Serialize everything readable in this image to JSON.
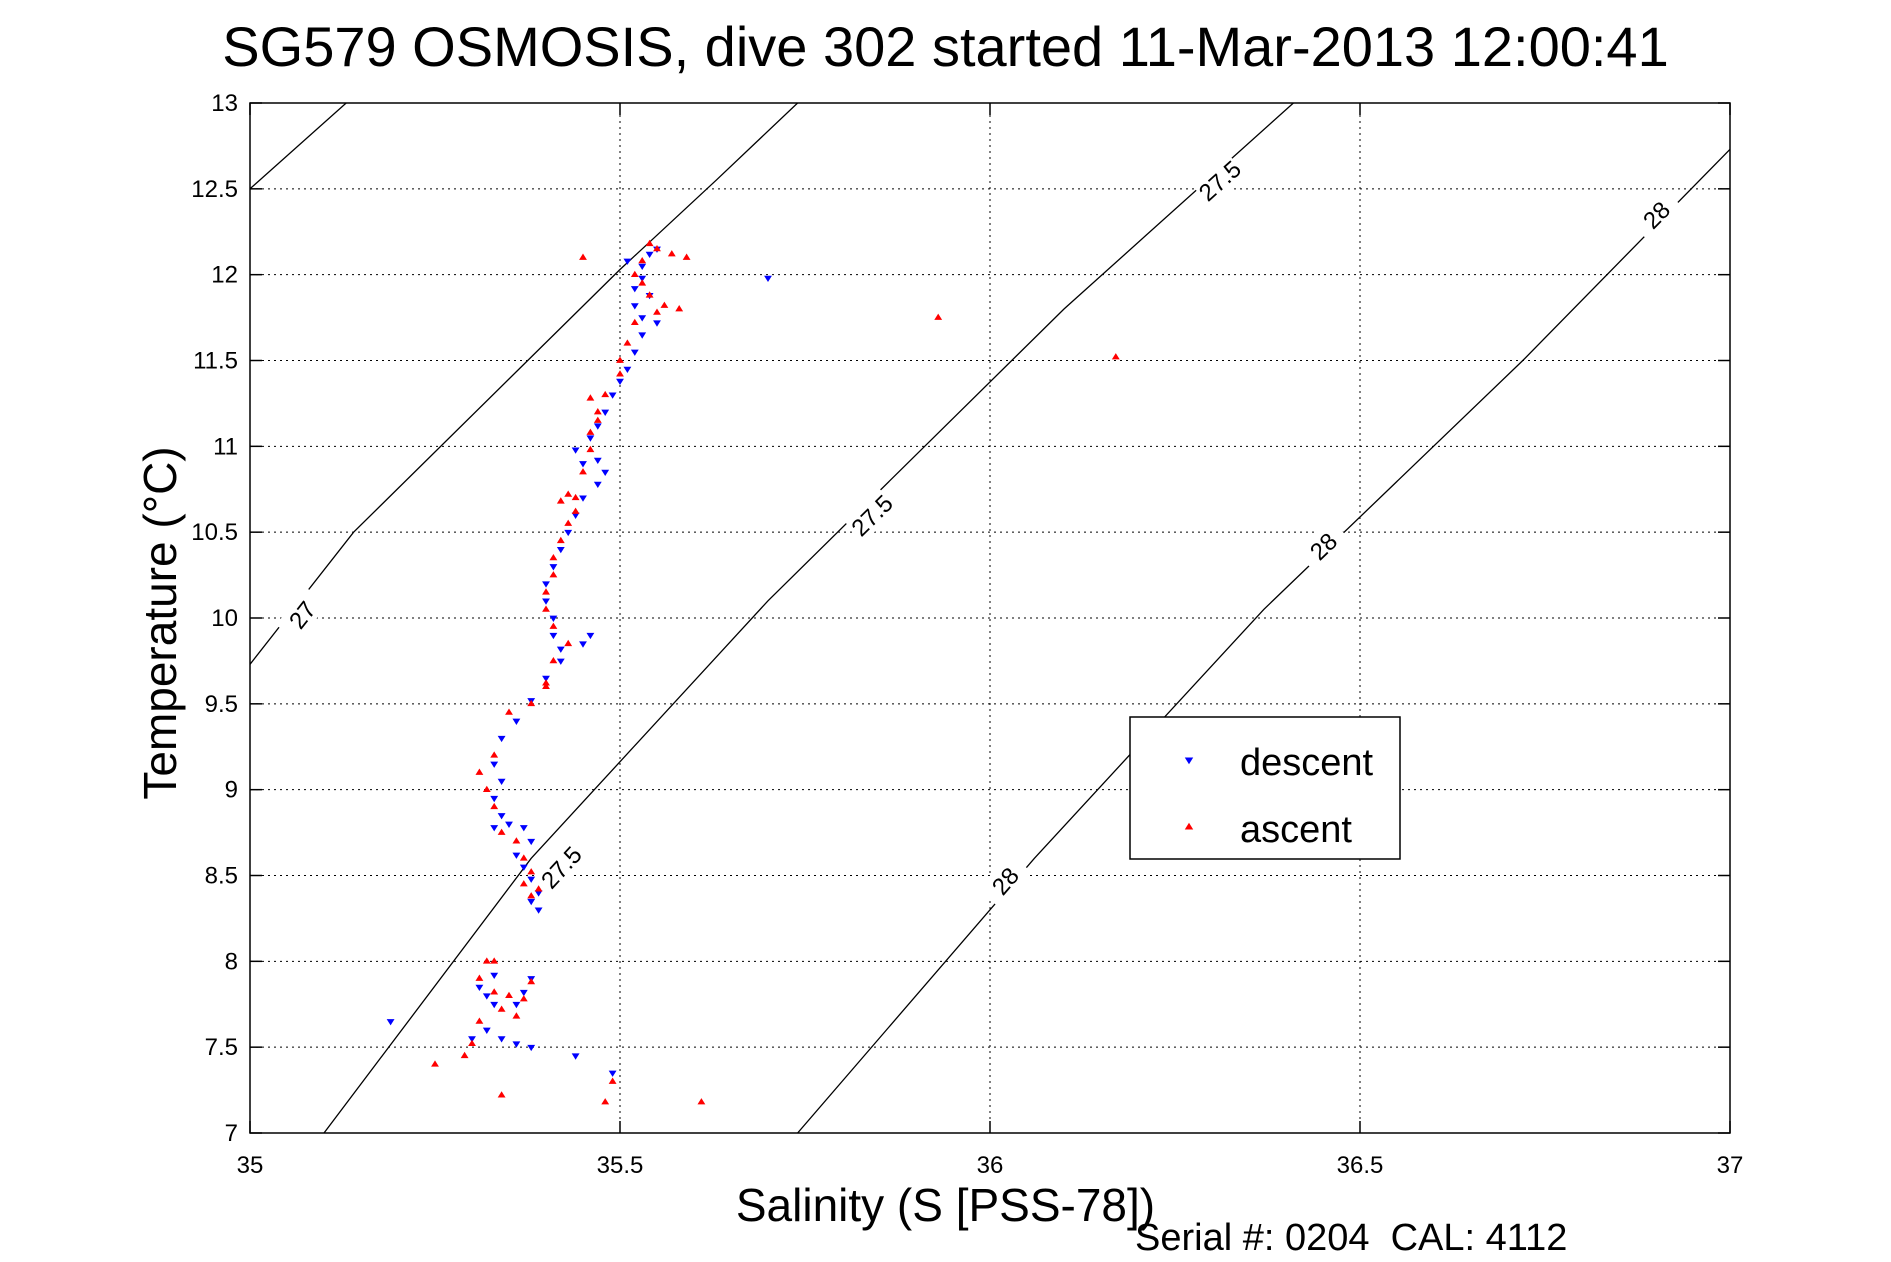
{
  "title": "SG579 OSMOSIS, dive 302 started 11-Mar-2013 12:00:41",
  "footer": {
    "serial_text": "Serial #: 0204  CAL: 4112"
  },
  "colors": {
    "descent": "#0000ff",
    "ascent": "#ff0000",
    "axes": "#000000",
    "grid": "#000000"
  },
  "chart_data": {
    "type": "scatter",
    "title": "SG579 OSMOSIS, dive 302 started 11-Mar-2013 12:00:41",
    "xlabel": "Salinity (S [PSS-78])",
    "ylabel": "Temperature (°C)",
    "xlim": [
      35,
      37
    ],
    "ylim": [
      7,
      13
    ],
    "x_ticks": [
      35,
      35.5,
      36,
      36.5,
      37
    ],
    "x_tick_labels": [
      "35",
      "35.5",
      "36",
      "36.5",
      "37"
    ],
    "y_ticks": [
      7,
      7.5,
      8,
      8.5,
      9,
      9.5,
      10,
      10.5,
      11,
      11.5,
      12,
      12.5,
      13
    ],
    "y_tick_labels": [
      "7",
      "7.5",
      "8",
      "8.5",
      "9",
      "9.5",
      "10",
      "10.5",
      "11",
      "11.5",
      "12",
      "12.5",
      "13"
    ],
    "grid": true,
    "legend": {
      "placement": "lower-right-center",
      "entries": [
        "descent",
        "ascent"
      ]
    },
    "density_contours": [
      {
        "label": "27",
        "points": [
          [
            35,
            9.73
          ],
          [
            35.14,
            10.5
          ],
          [
            35.5,
            12.03
          ],
          [
            35.63,
            12.55
          ],
          [
            35.74,
            13
          ]
        ],
        "label_at": [
          35.07,
          10.02
        ]
      },
      {
        "label": "27",
        "points": [
          [
            35,
            12.5
          ],
          [
            35.13,
            13
          ]
        ]
      },
      {
        "label": "27.5",
        "points": [
          [
            35.1,
            7
          ],
          [
            35.38,
            8.6
          ],
          [
            35.7,
            10.1
          ],
          [
            36.1,
            11.8
          ],
          [
            36.41,
            13
          ]
        ],
        "label_at": [
          35.42,
          8.55
        ]
      },
      {
        "label": "27.5",
        "points": [
          [
            35.1,
            7
          ],
          [
            35.38,
            8.6
          ],
          [
            35.7,
            10.1
          ],
          [
            36.1,
            11.8
          ],
          [
            36.41,
            13
          ]
        ],
        "label_at": [
          35.84,
          10.6
        ]
      },
      {
        "label": "27.5",
        "points": [
          [
            35.1,
            7
          ],
          [
            35.38,
            8.6
          ],
          [
            35.7,
            10.1
          ],
          [
            36.1,
            11.8
          ],
          [
            36.41,
            13
          ]
        ],
        "label_at": [
          36.31,
          12.55
        ]
      },
      {
        "label": "28",
        "points": [
          [
            35.74,
            7
          ],
          [
            36.06,
            8.6
          ],
          [
            36.37,
            10.05
          ],
          [
            36.72,
            11.5
          ],
          [
            37,
            12.73
          ]
        ],
        "label_at": [
          36.02,
          8.47
        ]
      },
      {
        "label": "28",
        "points": [
          [
            35.74,
            7
          ],
          [
            36.06,
            8.6
          ],
          [
            36.37,
            10.05
          ],
          [
            36.72,
            11.5
          ],
          [
            37,
            12.73
          ]
        ],
        "label_at": [
          36.45,
          10.42
        ]
      },
      {
        "label": "28",
        "points": [
          [
            35.74,
            7
          ],
          [
            36.06,
            8.6
          ],
          [
            36.37,
            10.05
          ],
          [
            36.72,
            11.5
          ],
          [
            37,
            12.73
          ]
        ],
        "label_at": [
          36.9,
          12.35
        ]
      }
    ],
    "series": [
      {
        "name": "descent",
        "marker": "triangle-down",
        "points": [
          [
            35.54,
            12.12
          ],
          [
            35.53,
            12.05
          ],
          [
            35.53,
            11.98
          ],
          [
            35.52,
            11.92
          ],
          [
            35.54,
            11.88
          ],
          [
            35.52,
            11.82
          ],
          [
            35.53,
            11.75
          ],
          [
            35.55,
            11.72
          ],
          [
            35.53,
            11.65
          ],
          [
            35.52,
            11.55
          ],
          [
            35.51,
            11.45
          ],
          [
            35.5,
            11.38
          ],
          [
            35.49,
            11.3
          ],
          [
            35.48,
            11.2
          ],
          [
            35.47,
            11.12
          ],
          [
            35.46,
            11.05
          ],
          [
            35.44,
            10.98
          ],
          [
            35.47,
            10.92
          ],
          [
            35.45,
            10.9
          ],
          [
            35.48,
            10.85
          ],
          [
            35.47,
            10.78
          ],
          [
            35.45,
            10.7
          ],
          [
            35.44,
            10.6
          ],
          [
            35.43,
            10.5
          ],
          [
            35.42,
            10.4
          ],
          [
            35.41,
            10.3
          ],
          [
            35.4,
            10.2
          ],
          [
            35.4,
            10.1
          ],
          [
            35.41,
            10.0
          ],
          [
            35.41,
            9.9
          ],
          [
            35.42,
            9.82
          ],
          [
            35.45,
            9.85
          ],
          [
            35.46,
            9.9
          ],
          [
            35.42,
            9.75
          ],
          [
            35.4,
            9.65
          ],
          [
            35.38,
            9.52
          ],
          [
            35.36,
            9.4
          ],
          [
            35.34,
            9.3
          ],
          [
            35.33,
            9.15
          ],
          [
            35.34,
            9.05
          ],
          [
            35.33,
            8.95
          ],
          [
            35.34,
            8.85
          ],
          [
            35.33,
            8.78
          ],
          [
            35.35,
            8.8
          ],
          [
            35.37,
            8.78
          ],
          [
            35.38,
            8.7
          ],
          [
            35.36,
            8.62
          ],
          [
            35.37,
            8.55
          ],
          [
            35.38,
            8.48
          ],
          [
            35.39,
            8.4
          ],
          [
            35.38,
            8.35
          ],
          [
            35.39,
            8.3
          ],
          [
            35.33,
            7.92
          ],
          [
            35.31,
            7.85
          ],
          [
            35.32,
            7.8
          ],
          [
            35.33,
            7.75
          ],
          [
            35.36,
            7.75
          ],
          [
            35.37,
            7.82
          ],
          [
            35.38,
            7.9
          ],
          [
            35.32,
            7.6
          ],
          [
            35.34,
            7.55
          ],
          [
            35.36,
            7.52
          ],
          [
            35.38,
            7.5
          ],
          [
            35.3,
            7.55
          ],
          [
            35.19,
            7.65
          ],
          [
            35.44,
            7.45
          ],
          [
            35.49,
            7.35
          ],
          [
            35.7,
            11.98
          ],
          [
            35.51,
            12.08
          ],
          [
            35.55,
            12.15
          ]
        ]
      },
      {
        "name": "ascent",
        "marker": "triangle-up",
        "points": [
          [
            35.54,
            12.18
          ],
          [
            35.55,
            12.15
          ],
          [
            35.57,
            12.12
          ],
          [
            35.53,
            12.08
          ],
          [
            35.52,
            12.0
          ],
          [
            35.53,
            11.95
          ],
          [
            35.54,
            11.88
          ],
          [
            35.56,
            11.82
          ],
          [
            35.55,
            11.78
          ],
          [
            35.52,
            11.72
          ],
          [
            35.51,
            11.6
          ],
          [
            35.5,
            11.42
          ],
          [
            35.48,
            11.3
          ],
          [
            35.46,
            11.28
          ],
          [
            35.47,
            11.2
          ],
          [
            35.46,
            11.08
          ],
          [
            35.46,
            10.98
          ],
          [
            35.45,
            10.85
          ],
          [
            35.43,
            10.72
          ],
          [
            35.42,
            10.68
          ],
          [
            35.44,
            10.62
          ],
          [
            35.43,
            10.55
          ],
          [
            35.42,
            10.45
          ],
          [
            35.41,
            10.35
          ],
          [
            35.41,
            10.25
          ],
          [
            35.4,
            10.15
          ],
          [
            35.4,
            10.05
          ],
          [
            35.41,
            9.95
          ],
          [
            35.43,
            9.85
          ],
          [
            35.41,
            9.75
          ],
          [
            35.4,
            9.62
          ],
          [
            35.38,
            9.5
          ],
          [
            35.35,
            9.45
          ],
          [
            35.33,
            9.2
          ],
          [
            35.31,
            9.1
          ],
          [
            35.32,
            9.0
          ],
          [
            35.33,
            8.9
          ],
          [
            35.34,
            8.75
          ],
          [
            35.36,
            8.7
          ],
          [
            35.37,
            8.6
          ],
          [
            35.38,
            8.52
          ],
          [
            35.37,
            8.45
          ],
          [
            35.38,
            8.38
          ],
          [
            35.32,
            8.0
          ],
          [
            35.31,
            7.9
          ],
          [
            35.33,
            7.82
          ],
          [
            35.35,
            7.8
          ],
          [
            35.37,
            7.78
          ],
          [
            35.38,
            7.88
          ],
          [
            35.34,
            7.72
          ],
          [
            35.31,
            7.65
          ],
          [
            35.3,
            7.52
          ],
          [
            35.29,
            7.45
          ],
          [
            35.25,
            7.4
          ],
          [
            35.34,
            7.22
          ],
          [
            35.48,
            7.18
          ],
          [
            35.49,
            7.3
          ],
          [
            35.61,
            7.18
          ],
          [
            35.45,
            12.1
          ],
          [
            35.59,
            12.1
          ],
          [
            35.93,
            11.75
          ],
          [
            36.17,
            11.52
          ],
          [
            35.58,
            11.8
          ],
          [
            35.47,
            11.15
          ],
          [
            35.44,
            10.7
          ],
          [
            35.5,
            11.5
          ],
          [
            35.4,
            9.6
          ],
          [
            35.39,
            8.42
          ],
          [
            35.33,
            8.0
          ],
          [
            35.36,
            7.68
          ]
        ]
      }
    ]
  }
}
